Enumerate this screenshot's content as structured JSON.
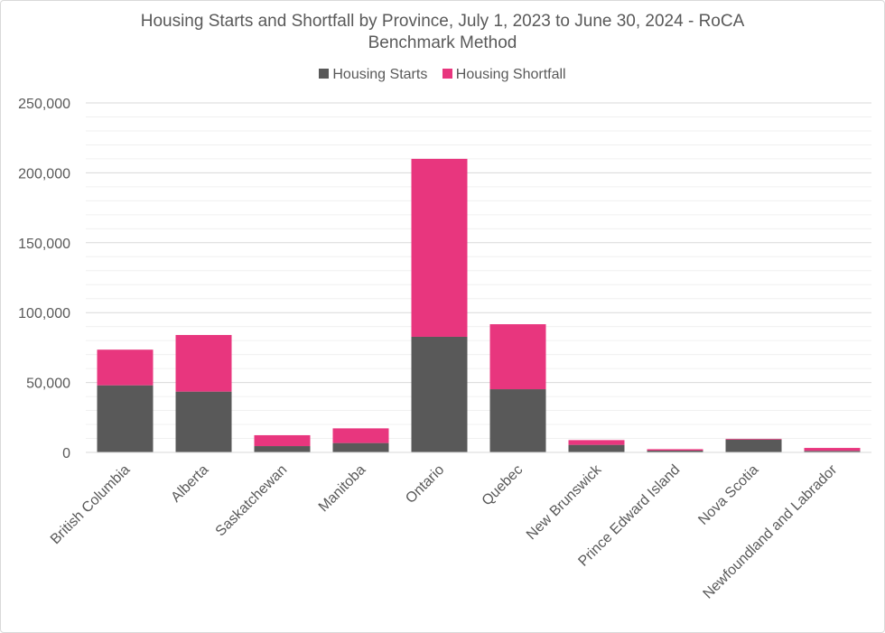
{
  "chart_data": {
    "type": "bar",
    "stacked": true,
    "title": "Housing Starts and Shortfall by Province, July 1, 2023 to June 30, 2024 - RoCA Benchmark Method",
    "title_lines": [
      "Housing Starts and Shortfall by Province, July 1, 2023 to June 30, 2024 - RoCA",
      "Benchmark Method"
    ],
    "xlabel": "",
    "ylabel": "",
    "ylim": [
      0,
      250000
    ],
    "yticks": [
      0,
      50000,
      100000,
      150000,
      200000,
      250000
    ],
    "ytick_labels": [
      "0",
      "50,000",
      "100,000",
      "150,000",
      "200,000",
      "250,000"
    ],
    "grid": true,
    "legend_position": "top",
    "categories": [
      "British Columbia",
      "Alberta",
      "Saskatchewan",
      "Manitoba",
      "Ontario",
      "Quebec",
      "New Brunswick",
      "Prince Edward Island",
      "Nova Scotia",
      "Newfoundland and Labrador"
    ],
    "series": [
      {
        "name": "Housing Starts",
        "color": "#595959",
        "values": [
          48000,
          43500,
          4500,
          6700,
          82700,
          45200,
          5400,
          1300,
          9200,
          1100
        ]
      },
      {
        "name": "Housing Shortfall",
        "color": "#e8367e",
        "values": [
          25500,
          40500,
          7800,
          10500,
          127300,
          46500,
          3400,
          1000,
          500,
          2100
        ]
      }
    ]
  }
}
